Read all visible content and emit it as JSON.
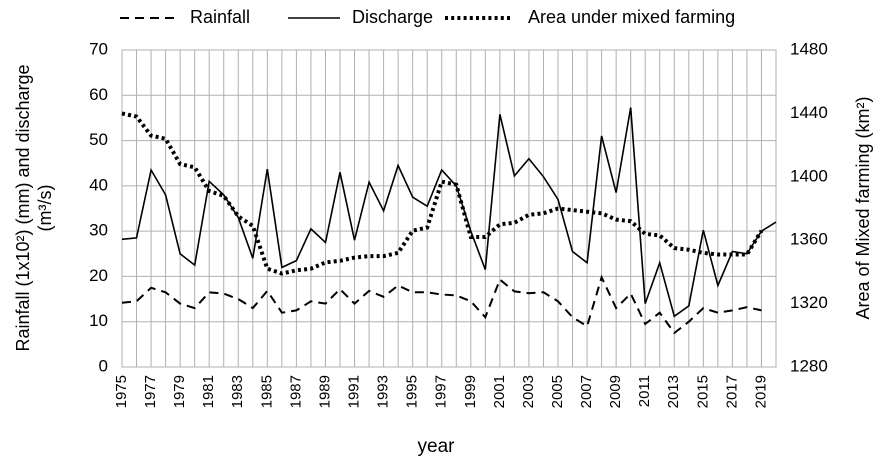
{
  "chart_data": {
    "type": "line",
    "xlabel": "year",
    "ylabel": [
      "Rainfall (1x10²) (mm) and discharge",
      "(m³/s)"
    ],
    "y2label": "Area of Mixed farming (km²)",
    "x": [
      1975,
      1976,
      1977,
      1978,
      1979,
      1980,
      1981,
      1982,
      1983,
      1984,
      1985,
      1986,
      1987,
      1988,
      1989,
      1990,
      1991,
      1992,
      1993,
      1994,
      1995,
      1996,
      1997,
      1998,
      1999,
      2000,
      2001,
      2002,
      2003,
      2004,
      2005,
      2006,
      2007,
      2008,
      2009,
      2010,
      2011,
      2012,
      2013,
      2014,
      2015,
      2016,
      2017,
      2018,
      2019,
      2020
    ],
    "xlim": [
      1975,
      2020
    ],
    "xticks": [
      1975,
      1977,
      1979,
      1981,
      1983,
      1985,
      1987,
      1989,
      1991,
      1993,
      1995,
      1997,
      1999,
      2001,
      2003,
      2005,
      2007,
      2009,
      2011,
      2013,
      2015,
      2017,
      2019
    ],
    "ylim": [
      0,
      70
    ],
    "yticks": [
      0,
      10,
      20,
      30,
      40,
      50,
      60,
      70
    ],
    "y2lim": [
      1280,
      1480
    ],
    "y2ticks": [
      1280,
      1320,
      1360,
      1400,
      1440,
      1480
    ],
    "grid": true,
    "series": [
      {
        "name": "Rainfall",
        "color": "#000000",
        "linestyle": "dash",
        "values": [
          14.2,
          14.5,
          17.5,
          16.5,
          14,
          13,
          16.5,
          16.2,
          15,
          13,
          16.8,
          12,
          12.5,
          14.5,
          14,
          17.2,
          14,
          16.8,
          15.5,
          18,
          16.5,
          16.5,
          16,
          15.8,
          14.5,
          11,
          19.3,
          16.7,
          16.3,
          16.5,
          14.5,
          11,
          9,
          19.8,
          13,
          16.2,
          9.5,
          12,
          7.5,
          10,
          13,
          12,
          12.5,
          13.2,
          12.5,
          null
        ]
      },
      {
        "name": "Discharge",
        "color": "#000000",
        "linestyle": "solid",
        "values": [
          28.2,
          28.5,
          43.5,
          38,
          25,
          22.5,
          41,
          38,
          33,
          24,
          43.7,
          22,
          23.5,
          30.5,
          27.5,
          43,
          28,
          40.8,
          34.5,
          44.5,
          37.5,
          35.5,
          43.5,
          40,
          30,
          21.5,
          55.8,
          42.2,
          46,
          42,
          37,
          25.5,
          23,
          51,
          38.5,
          57.3,
          14,
          23,
          11.2,
          13.5,
          30.2,
          18,
          25.5,
          25,
          30,
          32
        ]
      },
      {
        "name": "Area under mixed farming",
        "color": "#000000",
        "linestyle": "dot",
        "axis": "y2",
        "values": [
          1440,
          1438,
          1426,
          1424,
          1408,
          1406,
          1391,
          1388,
          1375,
          1369,
          1342,
          1339,
          1341,
          1342,
          1346,
          1347,
          1349,
          1350,
          1350,
          1352,
          1366,
          1368,
          1397,
          1395,
          1362,
          1362,
          1370,
          1371,
          1376,
          1377,
          1380,
          1379,
          1378,
          1377,
          1373,
          1372,
          1364,
          1363,
          1355,
          1354,
          1352,
          1351,
          1351,
          1351,
          1366,
          null
        ]
      }
    ]
  }
}
